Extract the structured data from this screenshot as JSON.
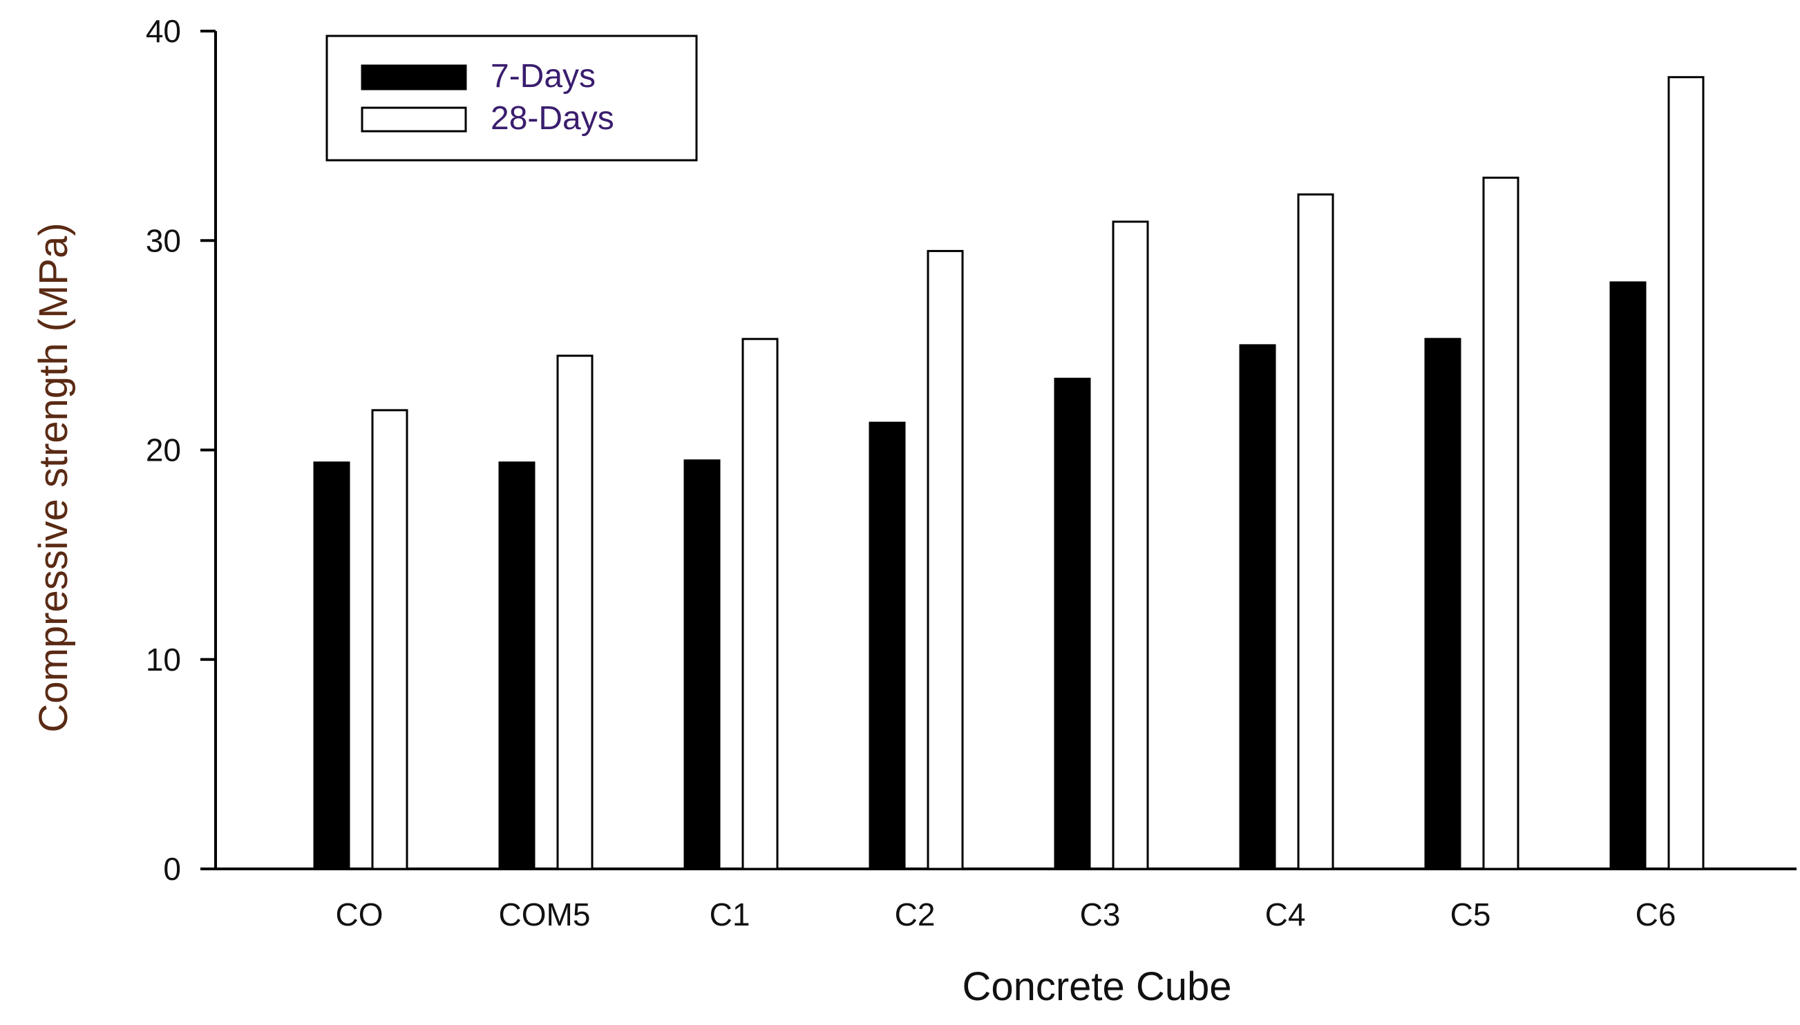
{
  "chart_data": {
    "type": "bar",
    "title": "",
    "xlabel": "Concrete Cube",
    "ylabel": "Compressive strength (MPa)",
    "categories": [
      "CO",
      "COM5",
      "C1",
      "C2",
      "C3",
      "C4",
      "C5",
      "C6"
    ],
    "series": [
      {
        "name": "7-Days",
        "values": [
          19.4,
          19.4,
          19.5,
          21.3,
          23.4,
          25.0,
          25.3,
          28.0
        ]
      },
      {
        "name": "28-Days",
        "values": [
          21.9,
          24.5,
          25.3,
          29.5,
          30.9,
          32.2,
          33.0,
          37.8
        ]
      }
    ],
    "ylim": [
      0,
      40
    ],
    "yticks": [
      0,
      10,
      20,
      30,
      40
    ],
    "grid": false,
    "legend_position": "top-left",
    "colors": {
      "series_7d": "#000000",
      "series_28d": "#ffffff",
      "axis": "#000000",
      "tick_text": "#111111",
      "xlabel_text": "#111111",
      "ylabel_text": "#5a2a14",
      "legend_text": "#3a1d6e"
    }
  }
}
